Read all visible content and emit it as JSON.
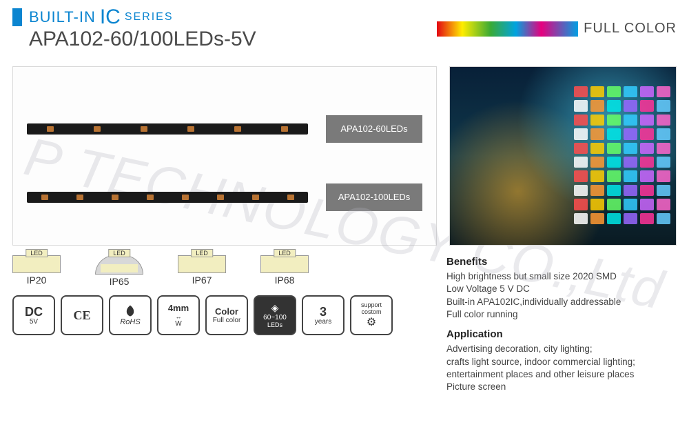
{
  "header": {
    "series_built": "BUILT-IN",
    "series_ic": "IC",
    "series_txt": "SERIES",
    "model": "APA102-60/100LEDs-5V",
    "fullcolor": "FULL COLOR"
  },
  "strips": [
    {
      "label": "APA102-60LEDs"
    },
    {
      "label": "APA102-100LEDs"
    }
  ],
  "ip_ratings": [
    {
      "code": "IP20",
      "led_tag": "LED",
      "style": "flat"
    },
    {
      "code": "IP65",
      "led_tag": "LED",
      "style": "dome"
    },
    {
      "code": "IP67",
      "led_tag": "LED",
      "style": "flat"
    },
    {
      "code": "IP68",
      "led_tag": "LED",
      "style": "flat"
    }
  ],
  "badges": {
    "dc": {
      "big": "DC",
      "sub": "5V"
    },
    "ce": {
      "big": "CE"
    },
    "rohs": {
      "big": "RoHS"
    },
    "width": {
      "big": "4mm",
      "sub": "W"
    },
    "color": {
      "big": "Color",
      "sub": "Full color"
    },
    "leds": {
      "big": "60~100",
      "sub": "LEDs"
    },
    "years": {
      "big": "3",
      "sub": "years"
    },
    "custom": {
      "big": "support",
      "sub": "costom"
    }
  },
  "benefits": {
    "title": "Benefits",
    "l1": "High brightness  but small size 2020 SMD",
    "l2": "Low Voltage 5 V DC",
    "l3": "Built-in APA102IC,individually addressable",
    "l4": "Full color running"
  },
  "application": {
    "title": "Application",
    "l1": "Advertising decoration, city lighting;",
    "l2": "crafts light source, indoor commercial lighting;",
    "l3": "entertainment places and other leisure places",
    "l4": "Picture screen"
  },
  "watermark": "P TECHNOLOGY CO.,Ltd",
  "pixel_colors": [
    "#ff4d4d",
    "#ffcc00",
    "#66ff66",
    "#33ccff",
    "#cc66ff",
    "#ff66cc",
    "#ffffff",
    "#ff9933",
    "#00e6e6",
    "#9966ff",
    "#ff3399",
    "#66ccff"
  ]
}
